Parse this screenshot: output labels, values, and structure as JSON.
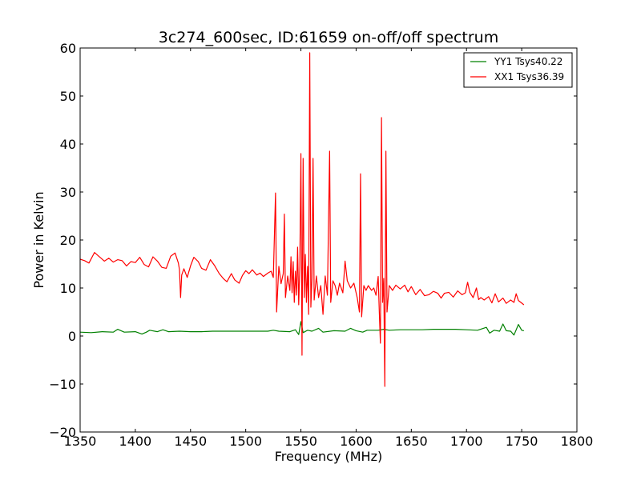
{
  "chart_data": {
    "type": "line",
    "title": "3c274_600sec, ID:61659 on-off/off spectrum",
    "xlabel": "Frequency (MHz)",
    "ylabel": "Power in Kelvin",
    "xlim": [
      1350,
      1800
    ],
    "ylim": [
      -20,
      60
    ],
    "xticks": [
      1350,
      1400,
      1450,
      1500,
      1550,
      1600,
      1650,
      1700,
      1750,
      1800
    ],
    "yticks": [
      -20,
      -10,
      0,
      10,
      20,
      30,
      40,
      50,
      60
    ],
    "x_tick_labels": [
      "1350",
      "1400",
      "1450",
      "1500",
      "1550",
      "1600",
      "1650",
      "1700",
      "1750",
      "1800"
    ],
    "y_tick_labels": [
      "−20",
      "−10",
      "0",
      "10",
      "20",
      "30",
      "40",
      "50",
      "60"
    ],
    "grid": false,
    "legend_position": "top-right",
    "series": [
      {
        "name": "YY1 Tsys40.22",
        "color": "#008000",
        "points": [
          [
            1350,
            0.8
          ],
          [
            1360,
            0.7
          ],
          [
            1370,
            0.9
          ],
          [
            1380,
            0.8
          ],
          [
            1384,
            1.4
          ],
          [
            1390,
            0.8
          ],
          [
            1400,
            0.9
          ],
          [
            1406,
            0.4
          ],
          [
            1410,
            0.8
          ],
          [
            1413,
            1.2
          ],
          [
            1420,
            0.9
          ],
          [
            1425,
            1.3
          ],
          [
            1430,
            0.9
          ],
          [
            1440,
            1.0
          ],
          [
            1450,
            0.9
          ],
          [
            1460,
            0.9
          ],
          [
            1470,
            1.0
          ],
          [
            1480,
            1.0
          ],
          [
            1490,
            1.0
          ],
          [
            1500,
            1.0
          ],
          [
            1510,
            1.0
          ],
          [
            1520,
            1.0
          ],
          [
            1525,
            1.2
          ],
          [
            1530,
            1.0
          ],
          [
            1540,
            0.9
          ],
          [
            1545,
            1.3
          ],
          [
            1548,
            0.3
          ],
          [
            1550,
            3.0
          ],
          [
            1552,
            0.7
          ],
          [
            1556,
            1.2
          ],
          [
            1560,
            1.0
          ],
          [
            1566,
            1.6
          ],
          [
            1570,
            0.8
          ],
          [
            1580,
            1.1
          ],
          [
            1590,
            1.0
          ],
          [
            1595,
            1.6
          ],
          [
            1600,
            1.1
          ],
          [
            1606,
            0.8
          ],
          [
            1610,
            1.2
          ],
          [
            1620,
            1.2
          ],
          [
            1625,
            1.4
          ],
          [
            1630,
            1.2
          ],
          [
            1640,
            1.3
          ],
          [
            1650,
            1.3
          ],
          [
            1660,
            1.3
          ],
          [
            1670,
            1.4
          ],
          [
            1680,
            1.4
          ],
          [
            1690,
            1.4
          ],
          [
            1700,
            1.3
          ],
          [
            1710,
            1.2
          ],
          [
            1718,
            1.8
          ],
          [
            1721,
            0.6
          ],
          [
            1725,
            1.2
          ],
          [
            1730,
            1.0
          ],
          [
            1733,
            2.5
          ],
          [
            1736,
            1.1
          ],
          [
            1740,
            1.0
          ],
          [
            1743,
            0.2
          ],
          [
            1747,
            2.4
          ],
          [
            1750,
            1.2
          ],
          [
            1752,
            1.1
          ]
        ]
      },
      {
        "name": "XX1 Tsys36.39",
        "color": "#ff0000",
        "points": [
          [
            1350,
            16.0
          ],
          [
            1354,
            15.7
          ],
          [
            1358,
            15.2
          ],
          [
            1363,
            17.4
          ],
          [
            1367,
            16.6
          ],
          [
            1372,
            15.6
          ],
          [
            1376,
            16.2
          ],
          [
            1380,
            15.4
          ],
          [
            1384,
            15.9
          ],
          [
            1388,
            15.7
          ],
          [
            1392,
            14.6
          ],
          [
            1396,
            15.5
          ],
          [
            1400,
            15.3
          ],
          [
            1404,
            16.4
          ],
          [
            1408,
            14.9
          ],
          [
            1412,
            14.4
          ],
          [
            1416,
            16.5
          ],
          [
            1420,
            15.6
          ],
          [
            1424,
            14.3
          ],
          [
            1428,
            14.1
          ],
          [
            1432,
            16.6
          ],
          [
            1436,
            17.3
          ],
          [
            1439,
            15.2
          ],
          [
            1440,
            13.8
          ],
          [
            1441,
            8.0
          ],
          [
            1442,
            12.7
          ],
          [
            1444,
            14.0
          ],
          [
            1447,
            12.2
          ],
          [
            1450,
            14.6
          ],
          [
            1453,
            16.4
          ],
          [
            1457,
            15.5
          ],
          [
            1460,
            14.1
          ],
          [
            1464,
            13.7
          ],
          [
            1468,
            15.9
          ],
          [
            1472,
            14.6
          ],
          [
            1476,
            13.0
          ],
          [
            1480,
            11.9
          ],
          [
            1483,
            11.3
          ],
          [
            1487,
            13.0
          ],
          [
            1490,
            11.7
          ],
          [
            1494,
            11.0
          ],
          [
            1497,
            12.6
          ],
          [
            1500,
            13.6
          ],
          [
            1503,
            13.0
          ],
          [
            1506,
            13.8
          ],
          [
            1510,
            12.7
          ],
          [
            1513,
            13.1
          ],
          [
            1516,
            12.4
          ],
          [
            1520,
            13.1
          ],
          [
            1523,
            13.5
          ],
          [
            1525,
            12.2
          ],
          [
            1527,
            29.8
          ],
          [
            1528,
            5.0
          ],
          [
            1530,
            14.5
          ],
          [
            1532,
            10.9
          ],
          [
            1534,
            13.0
          ],
          [
            1535,
            25.4
          ],
          [
            1536,
            8.0
          ],
          [
            1538,
            12.5
          ],
          [
            1540,
            9.5
          ],
          [
            1541,
            16.5
          ],
          [
            1542,
            9.0
          ],
          [
            1543,
            15.5
          ],
          [
            1544,
            7.0
          ],
          [
            1545,
            13.5
          ],
          [
            1546,
            8.5
          ],
          [
            1547,
            18.5
          ],
          [
            1548,
            6.5
          ],
          [
            1549,
            14.5
          ],
          [
            1550,
            38.0
          ],
          [
            1551,
            -4.0
          ],
          [
            1552,
            37.0
          ],
          [
            1553,
            8.0
          ],
          [
            1554,
            17.0
          ],
          [
            1555,
            7.0
          ],
          [
            1556,
            14.5
          ],
          [
            1557,
            4.5
          ],
          [
            1558,
            59.0
          ],
          [
            1559,
            6.0
          ],
          [
            1560,
            12.0
          ],
          [
            1561,
            37.0
          ],
          [
            1562,
            7.5
          ],
          [
            1564,
            12.5
          ],
          [
            1566,
            8.0
          ],
          [
            1568,
            10.5
          ],
          [
            1570,
            4.5
          ],
          [
            1572,
            12.5
          ],
          [
            1574,
            8.5
          ],
          [
            1576,
            38.5
          ],
          [
            1577,
            7.0
          ],
          [
            1579,
            11.5
          ],
          [
            1581,
            10.5
          ],
          [
            1583,
            8.5
          ],
          [
            1585,
            11.0
          ],
          [
            1588,
            9.0
          ],
          [
            1590,
            15.6
          ],
          [
            1592,
            11.5
          ],
          [
            1595,
            10.0
          ],
          [
            1598,
            11.0
          ],
          [
            1601,
            8.0
          ],
          [
            1603,
            5.0
          ],
          [
            1604,
            33.8
          ],
          [
            1605,
            4.0
          ],
          [
            1607,
            10.5
          ],
          [
            1609,
            9.5
          ],
          [
            1611,
            10.5
          ],
          [
            1614,
            9.5
          ],
          [
            1616,
            10.0
          ],
          [
            1618,
            8.5
          ],
          [
            1620,
            12.4
          ],
          [
            1621,
            5.0
          ],
          [
            1622,
            -1.5
          ],
          [
            1623,
            45.5
          ],
          [
            1624,
            7.0
          ],
          [
            1625,
            12.0
          ],
          [
            1626,
            -10.5
          ],
          [
            1627,
            38.5
          ],
          [
            1628,
            5.0
          ],
          [
            1630,
            10.5
          ],
          [
            1633,
            9.5
          ],
          [
            1636,
            10.6
          ],
          [
            1640,
            9.8
          ],
          [
            1644,
            10.6
          ],
          [
            1647,
            9.2
          ],
          [
            1650,
            10.3
          ],
          [
            1654,
            8.6
          ],
          [
            1658,
            9.7
          ],
          [
            1662,
            8.4
          ],
          [
            1666,
            8.6
          ],
          [
            1670,
            9.3
          ],
          [
            1674,
            8.9
          ],
          [
            1677,
            7.9
          ],
          [
            1680,
            8.9
          ],
          [
            1684,
            9.1
          ],
          [
            1688,
            8.1
          ],
          [
            1692,
            9.4
          ],
          [
            1696,
            8.6
          ],
          [
            1699,
            9.0
          ],
          [
            1701,
            11.2
          ],
          [
            1703,
            9.1
          ],
          [
            1706,
            8.0
          ],
          [
            1709,
            10.0
          ],
          [
            1711,
            7.6
          ],
          [
            1713,
            8.0
          ],
          [
            1716,
            7.5
          ],
          [
            1720,
            8.2
          ],
          [
            1723,
            6.9
          ],
          [
            1726,
            8.8
          ],
          [
            1729,
            7.1
          ],
          [
            1733,
            7.9
          ],
          [
            1736,
            6.8
          ],
          [
            1740,
            7.5
          ],
          [
            1743,
            7.0
          ],
          [
            1745,
            8.8
          ],
          [
            1747,
            7.4
          ],
          [
            1752,
            6.5
          ]
        ]
      }
    ]
  }
}
